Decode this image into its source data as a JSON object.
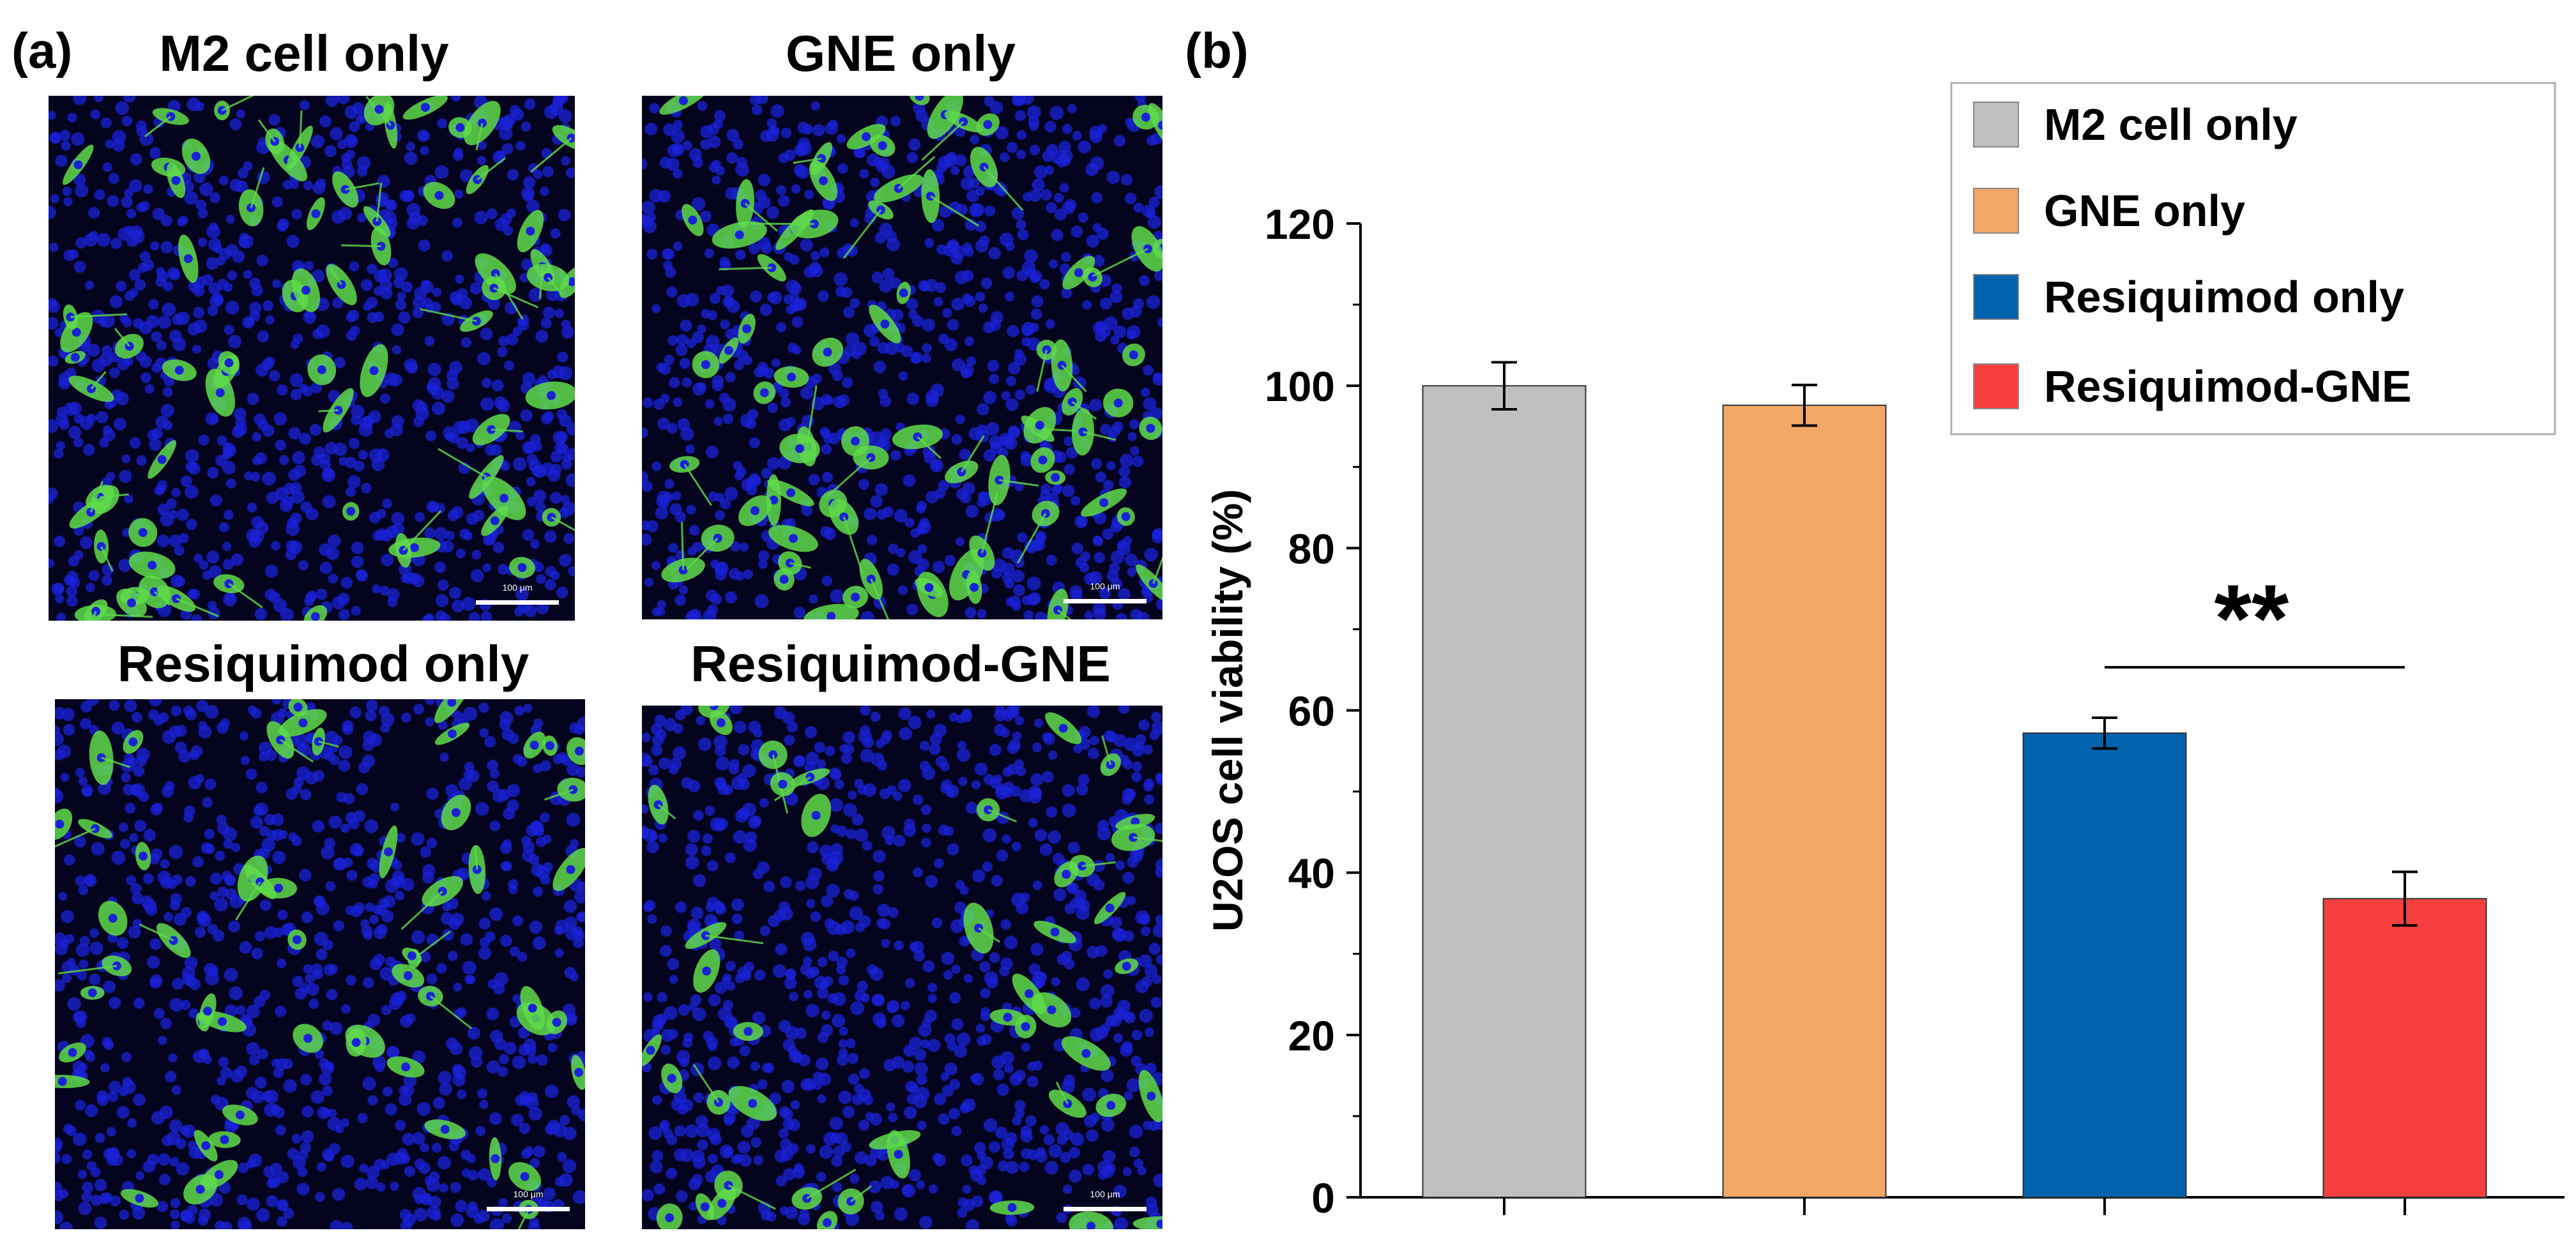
{
  "panel_a": {
    "label": "(a)",
    "images": [
      {
        "title": "M2 cell only",
        "scale_text": "100 μm",
        "green_cells": 70,
        "density": "high"
      },
      {
        "title": "GNE only",
        "scale_text": "100 μm",
        "green_cells": 75,
        "density": "high"
      },
      {
        "title": "Resiquimod only",
        "scale_text": "100 μm",
        "green_cells": 55,
        "density": "medium"
      },
      {
        "title": "Resiquimod-GNE",
        "scale_text": "100 μm",
        "green_cells": 45,
        "density": "low"
      }
    ],
    "colors": {
      "nuclei": "#1a22d8",
      "cytoplasm": "#5fdc4a",
      "background": "#04041e"
    }
  },
  "panel_b": {
    "label": "(b)"
  },
  "chart_data": {
    "type": "bar",
    "categories": [
      "M2 cell only",
      "GNE only",
      "Resiquimod only",
      "Resiquimod-GNE"
    ],
    "series": [
      {
        "values": [
          100,
          97.6,
          57.2,
          36.8
        ],
        "errors": [
          2.9,
          2.5,
          1.9,
          3.3
        ]
      }
    ],
    "colors": [
      "#c0c0c0",
      "#f2a766",
      "#0062ad",
      "#f64040"
    ],
    "ylabel": "U2OS cell viability (%)",
    "xlabel": "",
    "ylim": [
      0,
      120
    ],
    "yticks": [
      0,
      20,
      40,
      60,
      80,
      100,
      120
    ],
    "legend": {
      "placement": "top-right",
      "entries": [
        "M2 cell only",
        "GNE only",
        "Resiquimod only",
        "Resiquimod-GNE"
      ]
    },
    "annotation": {
      "text": "**",
      "between": [
        "Resiquimod only",
        "Resiquimod-GNE"
      ]
    },
    "grid": false
  }
}
